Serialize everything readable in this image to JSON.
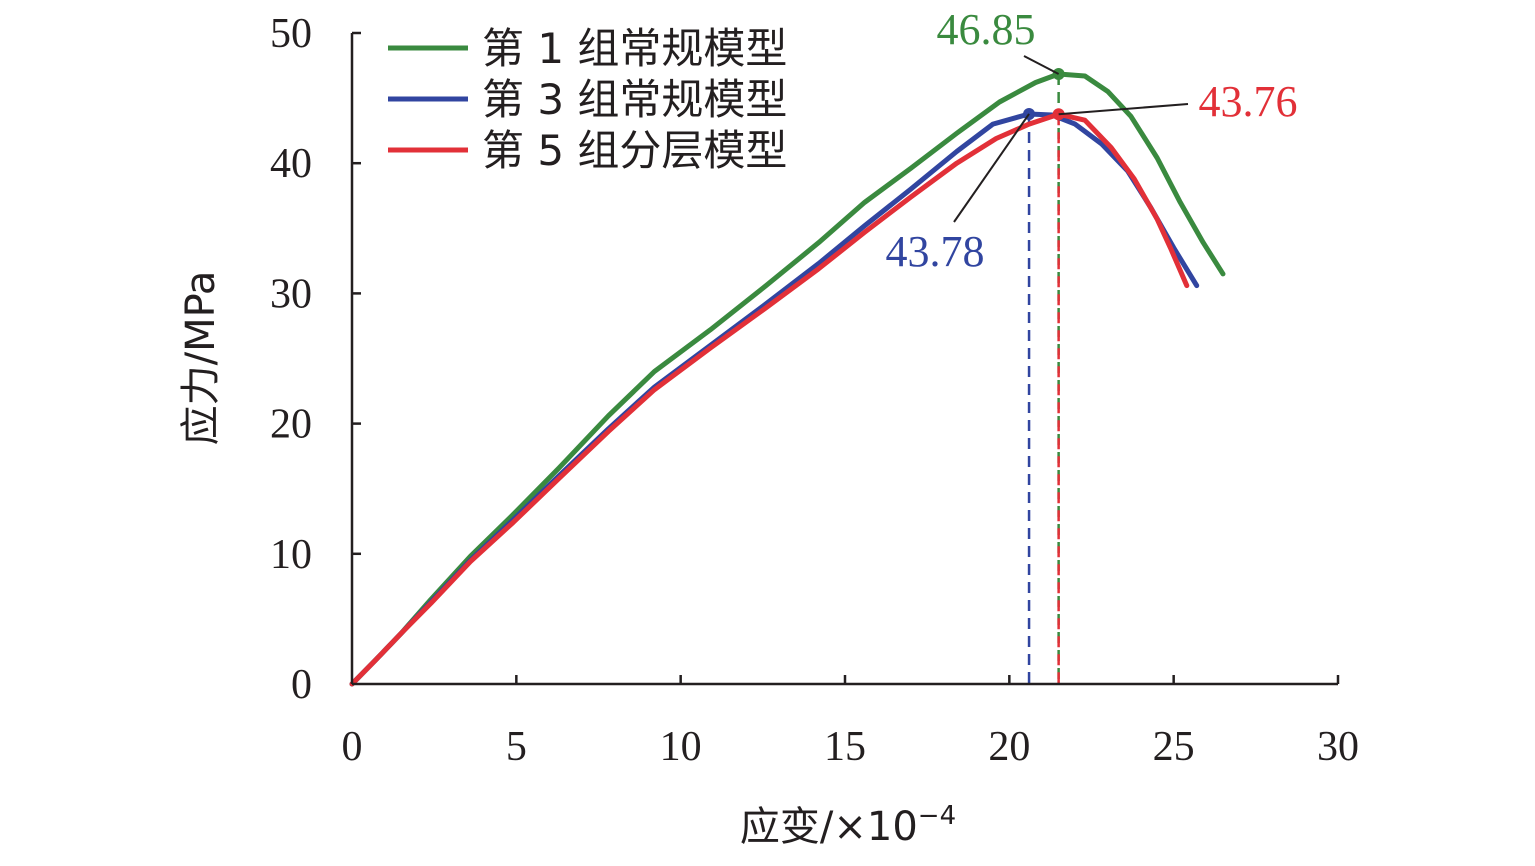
{
  "chart_data": {
    "type": "line",
    "xlabel": "应变/×10",
    "xlabel_exponent": "−4",
    "ylabel": "应力/MPa",
    "xlim": [
      0,
      30
    ],
    "ylim": [
      0,
      50
    ],
    "x_ticks": [
      0,
      5,
      10,
      15,
      20,
      25,
      30
    ],
    "y_ticks": [
      0,
      10,
      20,
      30,
      40,
      50
    ],
    "grid": false,
    "legend_position": "top-left",
    "series": [
      {
        "name": "第 1 组常规模型",
        "color": "#3a8a3f",
        "points": [
          [
            0,
            0
          ],
          [
            0.7,
            1.8
          ],
          [
            1.5,
            3.9
          ],
          [
            2.4,
            6.5
          ],
          [
            3.6,
            9.8
          ],
          [
            4.9,
            13.0
          ],
          [
            6.3,
            16.6
          ],
          [
            7.8,
            20.6
          ],
          [
            9.2,
            24.0
          ],
          [
            10.9,
            27.2
          ],
          [
            12.6,
            30.6
          ],
          [
            14.2,
            33.9
          ],
          [
            15.6,
            37.0
          ],
          [
            17.0,
            39.6
          ],
          [
            18.4,
            42.3
          ],
          [
            19.7,
            44.7
          ],
          [
            20.8,
            46.2
          ],
          [
            21.5,
            46.85
          ],
          [
            22.3,
            46.7
          ],
          [
            23.0,
            45.5
          ],
          [
            23.7,
            43.6
          ],
          [
            24.5,
            40.4
          ],
          [
            25.2,
            37.0
          ],
          [
            25.9,
            33.9
          ],
          [
            26.5,
            31.5
          ]
        ],
        "peak": {
          "x": 21.5,
          "y": 46.85,
          "label": "46.85"
        }
      },
      {
        "name": "第 3 组常规模型",
        "color": "#3145a0",
        "points": [
          [
            0,
            0
          ],
          [
            0.7,
            1.8
          ],
          [
            1.5,
            3.9
          ],
          [
            2.4,
            6.3
          ],
          [
            3.6,
            9.5
          ],
          [
            4.9,
            12.6
          ],
          [
            6.3,
            16.0
          ],
          [
            7.8,
            19.6
          ],
          [
            9.2,
            22.8
          ],
          [
            10.9,
            26.0
          ],
          [
            12.6,
            29.2
          ],
          [
            14.2,
            32.3
          ],
          [
            15.6,
            35.2
          ],
          [
            17.0,
            38.0
          ],
          [
            18.4,
            40.9
          ],
          [
            19.5,
            43.0
          ],
          [
            20.6,
            43.78
          ],
          [
            21.3,
            43.7
          ],
          [
            22.0,
            43.0
          ],
          [
            22.8,
            41.5
          ],
          [
            23.6,
            39.4
          ],
          [
            24.3,
            36.6
          ],
          [
            25.0,
            33.5
          ],
          [
            25.7,
            30.6
          ]
        ],
        "peak": {
          "x": 20.6,
          "y": 43.78,
          "label": "43.78"
        }
      },
      {
        "name": "第 5 组分层模型",
        "color": "#e23038",
        "points": [
          [
            0,
            0
          ],
          [
            0.7,
            1.8
          ],
          [
            1.5,
            3.9
          ],
          [
            2.4,
            6.2
          ],
          [
            3.6,
            9.4
          ],
          [
            4.9,
            12.4
          ],
          [
            6.3,
            15.8
          ],
          [
            7.8,
            19.4
          ],
          [
            9.2,
            22.6
          ],
          [
            10.9,
            25.8
          ],
          [
            12.6,
            28.9
          ],
          [
            14.2,
            31.9
          ],
          [
            15.6,
            34.7
          ],
          [
            17.0,
            37.4
          ],
          [
            18.4,
            40.0
          ],
          [
            19.6,
            41.9
          ],
          [
            20.6,
            43.0
          ],
          [
            21.5,
            43.76
          ],
          [
            22.3,
            43.3
          ],
          [
            23.1,
            41.2
          ],
          [
            23.8,
            38.8
          ],
          [
            24.5,
            35.7
          ],
          [
            24.9,
            33.5
          ],
          [
            25.4,
            30.6
          ]
        ],
        "peak": {
          "x": 21.5,
          "y": 43.76,
          "label": "43.76"
        }
      }
    ]
  }
}
